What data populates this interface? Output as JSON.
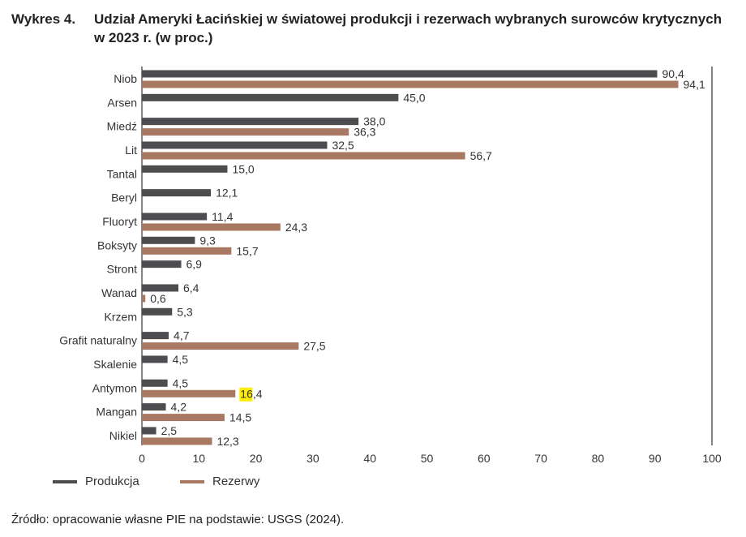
{
  "title": {
    "number": "Wykres 4.",
    "text": "Udział Ameryki Łacińskiej w światowej produkcji i rezerwach wybranych surowców krytycznych w 2023 r. (w proc.)"
  },
  "source": "Źródło: opracowanie własne PIE na podstawie: USGS (2024).",
  "chart_data": {
    "type": "bar",
    "orientation": "horizontal",
    "categories": [
      "Niob",
      "Arsen",
      "Miedź",
      "Lit",
      "Tantal",
      "Beryl",
      "Fluoryt",
      "Boksyty",
      "Stront",
      "Wanad",
      "Krzem",
      "Grafit naturalny",
      "Skalenie",
      "Antymon",
      "Mangan",
      "Nikiel"
    ],
    "series": [
      {
        "name": "Produkcja",
        "color": "#4d4d4f",
        "values": [
          90.4,
          45.0,
          38.0,
          32.5,
          15.0,
          12.1,
          11.4,
          9.3,
          6.9,
          6.4,
          5.3,
          4.7,
          4.5,
          4.5,
          4.2,
          2.5
        ],
        "labels": [
          "90,4",
          "45,0",
          "38,0",
          "32,5",
          "15,0",
          "12,1",
          "11,4",
          "9,3",
          "6,9",
          "6,4",
          "5,3",
          "4,7",
          "4,5",
          "4,5",
          "4,2",
          "2,5"
        ]
      },
      {
        "name": "Rezerwy",
        "color": "#a87862",
        "values": [
          94.1,
          null,
          36.3,
          56.7,
          null,
          null,
          24.3,
          15.7,
          null,
          0.6,
          null,
          27.5,
          null,
          16.4,
          14.5,
          12.3
        ],
        "labels": [
          "94,1",
          null,
          "36,3",
          "56,7",
          null,
          null,
          "24,3",
          "15,7",
          null,
          "0,6",
          null,
          "27,5",
          null,
          "16,4",
          "14,5",
          "12,3"
        ]
      }
    ],
    "xlim": [
      0,
      100
    ],
    "xticks": [
      "0",
      "10",
      "20",
      "30",
      "40",
      "50",
      "60",
      "70",
      "80",
      "90",
      "100"
    ],
    "highlight": {
      "category": "Antymon",
      "series": "Rezerwy",
      "text": "16",
      "color": "#ffee00"
    },
    "legend_position": "bottom-left",
    "grid": false
  }
}
